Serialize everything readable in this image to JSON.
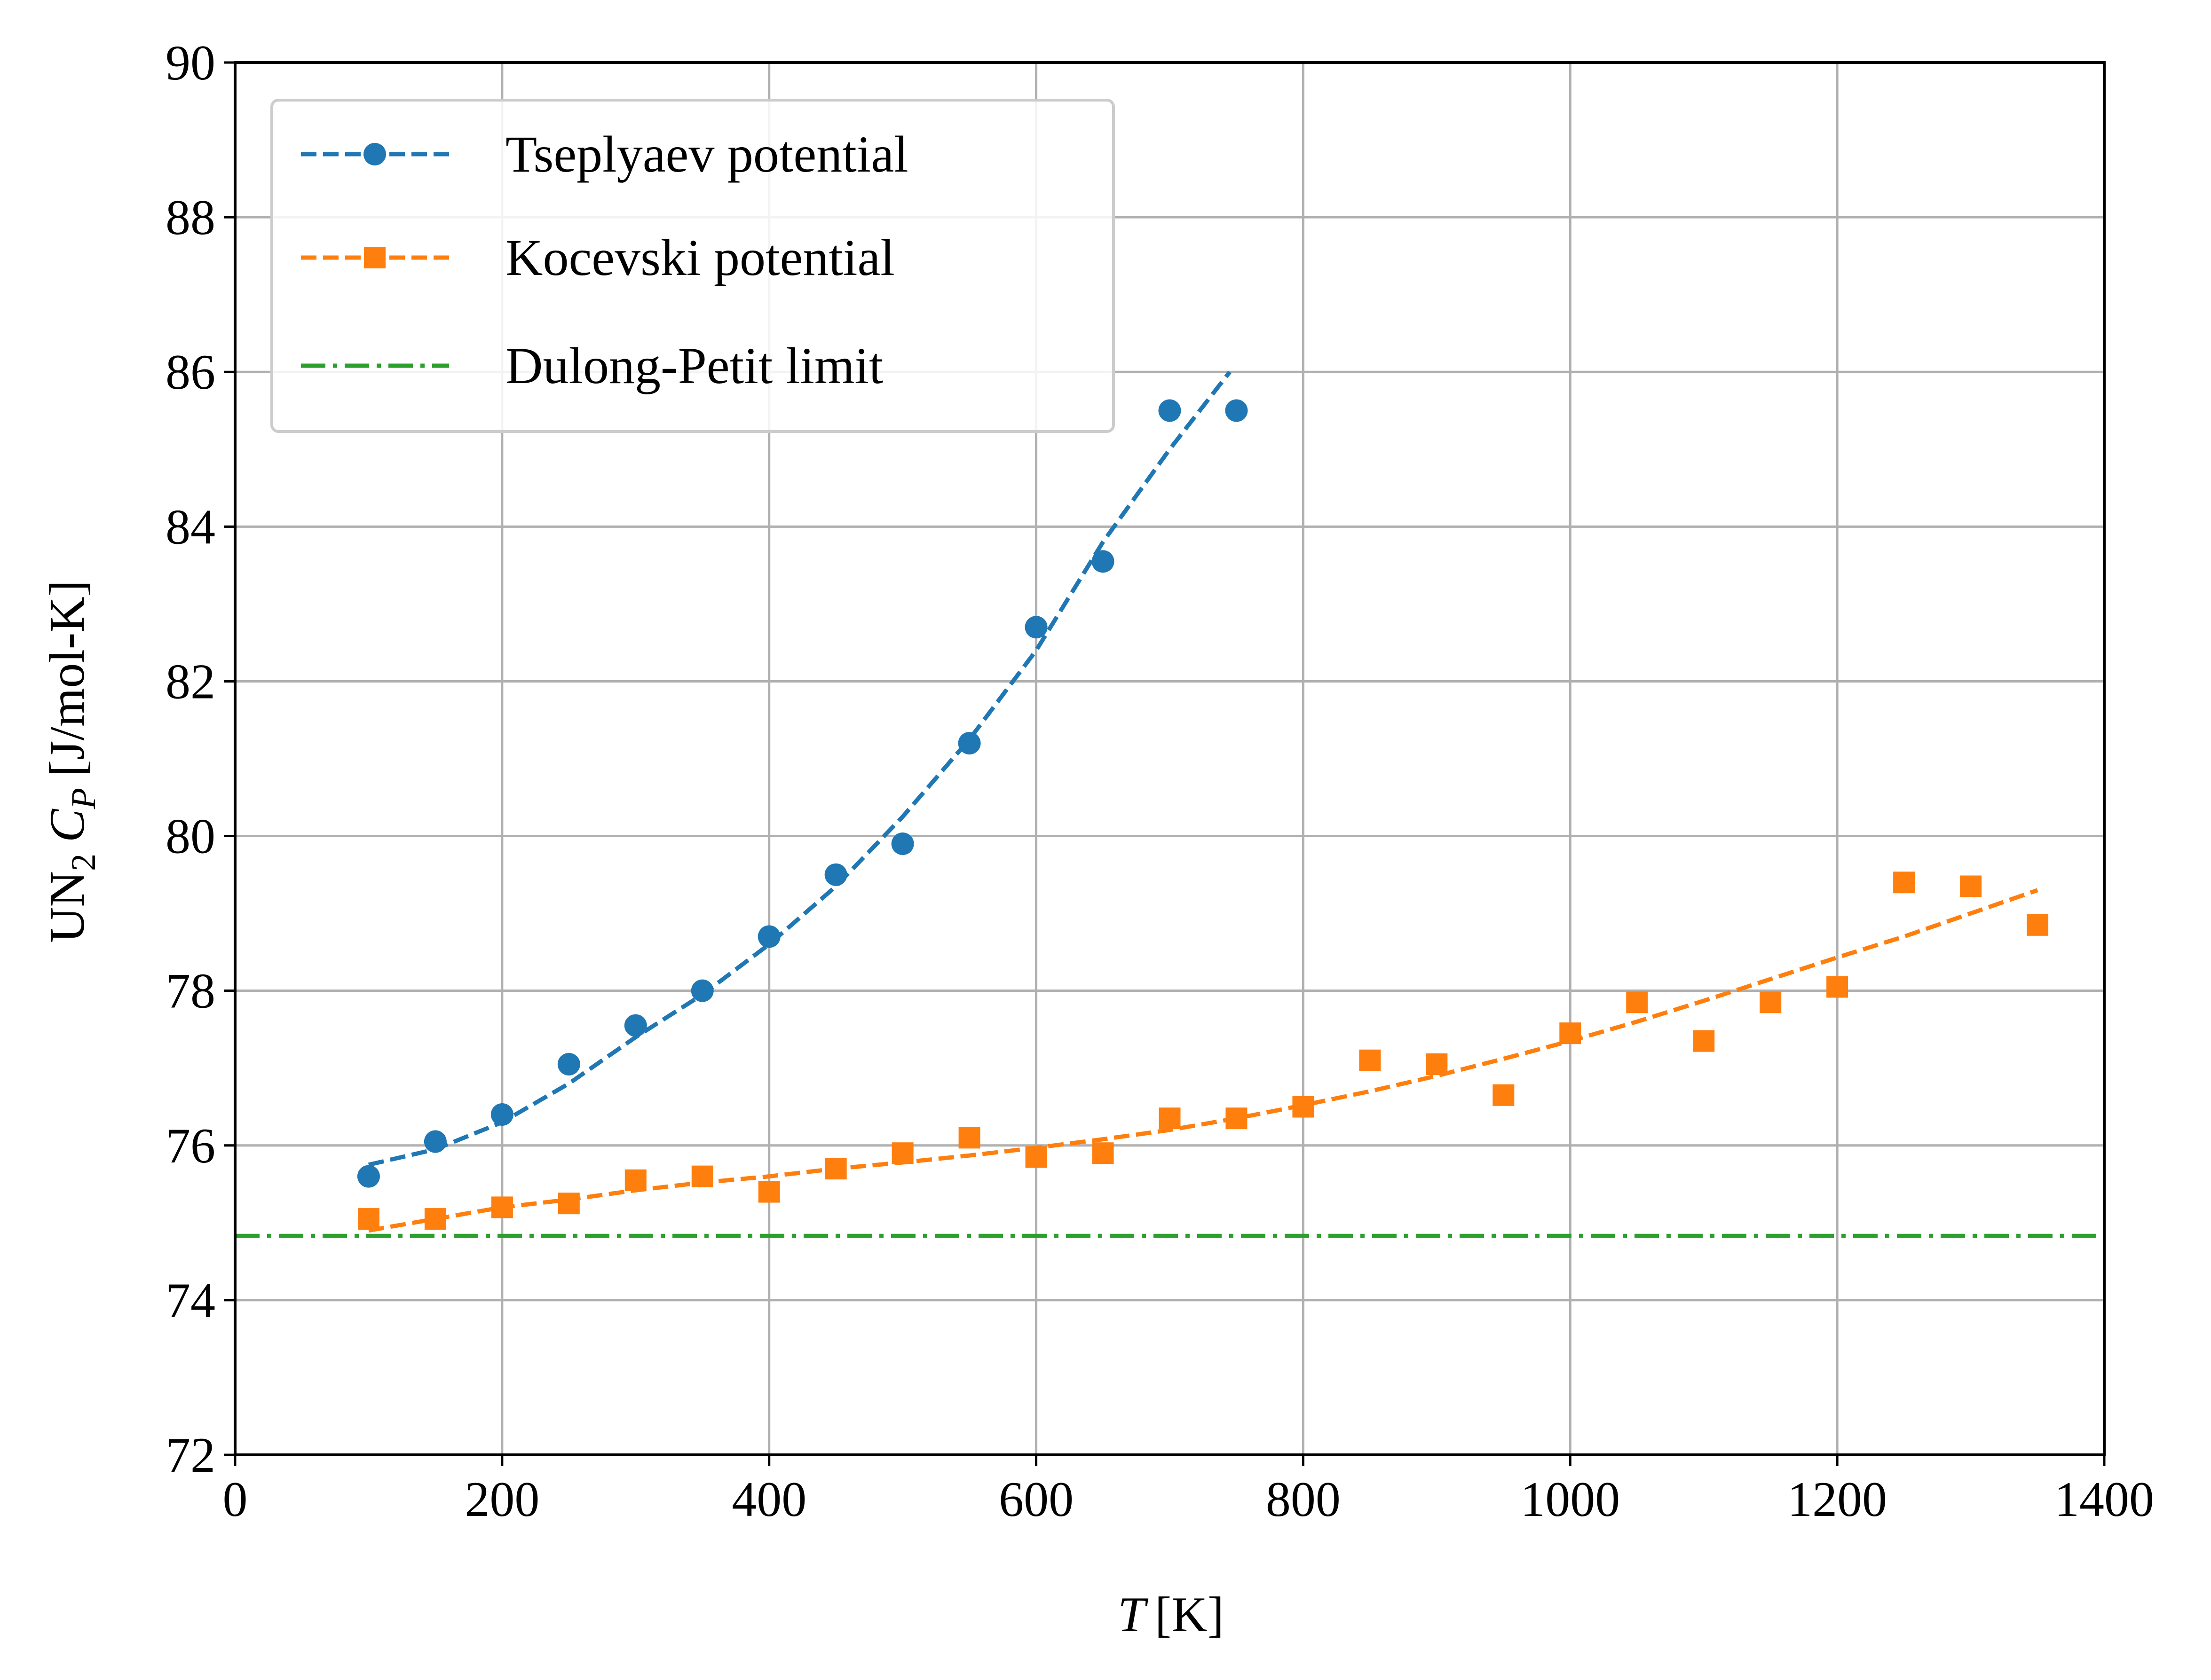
{
  "chart_data": {
    "type": "line",
    "xlabel_var": "T",
    "xlabel_unit": "[K]",
    "ylabel_pre": "UN",
    "ylabel_sub": "2",
    "ylabel_var": "C",
    "ylabel_var_sub": "P",
    "ylabel_unit": "[J/mol-K]",
    "xlim": [
      0,
      1400
    ],
    "ylim": [
      72,
      90
    ],
    "xticks": [
      0,
      200,
      400,
      600,
      800,
      1000,
      1200,
      1400
    ],
    "yticks": [
      72,
      74,
      76,
      78,
      80,
      82,
      84,
      86,
      88,
      90
    ],
    "grid": true,
    "legend_position": "top-left",
    "series": [
      {
        "name": "Tseplyaev potential",
        "color": "#1f77b4",
        "marker": "circle",
        "points": {
          "x": [
            100,
            150,
            200,
            250,
            300,
            350,
            400,
            450,
            500,
            550,
            600,
            650,
            700,
            750
          ],
          "y": [
            75.6,
            76.05,
            76.4,
            77.05,
            77.55,
            78.0,
            78.7,
            79.5,
            79.9,
            81.2,
            82.7,
            83.55,
            85.5,
            85.5
          ]
        },
        "fit": {
          "x": [
            100,
            150,
            200,
            250,
            300,
            350,
            400,
            450,
            500,
            550,
            600,
            650,
            700,
            745
          ],
          "y": [
            75.75,
            75.95,
            76.3,
            76.8,
            77.4,
            77.95,
            78.6,
            79.35,
            80.25,
            81.25,
            82.4,
            83.8,
            85.0,
            86.0
          ]
        }
      },
      {
        "name": "Kocevski potential",
        "color": "#ff7f0e",
        "marker": "square",
        "points": {
          "x": [
            100,
            150,
            200,
            250,
            300,
            350,
            400,
            450,
            500,
            550,
            600,
            650,
            700,
            750,
            800,
            850,
            900,
            950,
            1000,
            1050,
            1100,
            1150,
            1200,
            1250,
            1300,
            1350
          ],
          "y": [
            75.05,
            75.05,
            75.2,
            75.25,
            75.55,
            75.6,
            75.4,
            75.7,
            75.9,
            76.1,
            75.85,
            75.9,
            76.35,
            76.35,
            76.5,
            77.1,
            77.05,
            76.65,
            77.45,
            77.85,
            77.35,
            77.85,
            78.05,
            79.4,
            79.35,
            78.85
          ]
        },
        "fit": {
          "x": [
            100,
            150,
            200,
            250,
            300,
            350,
            400,
            450,
            500,
            550,
            600,
            650,
            700,
            750,
            800,
            850,
            900,
            950,
            1000,
            1050,
            1100,
            1150,
            1200,
            1250,
            1300,
            1350
          ],
          "y": [
            74.9,
            75.05,
            75.2,
            75.3,
            75.42,
            75.52,
            75.6,
            75.7,
            75.78,
            75.87,
            75.97,
            76.08,
            76.2,
            76.35,
            76.52,
            76.7,
            76.9,
            77.12,
            77.35,
            77.6,
            77.87,
            78.15,
            78.43,
            78.7,
            79.0,
            79.3
          ]
        }
      },
      {
        "name": "Dulong-Petit limit",
        "color": "#2ca02c",
        "style": "dash-dot",
        "value": 74.83
      }
    ]
  }
}
